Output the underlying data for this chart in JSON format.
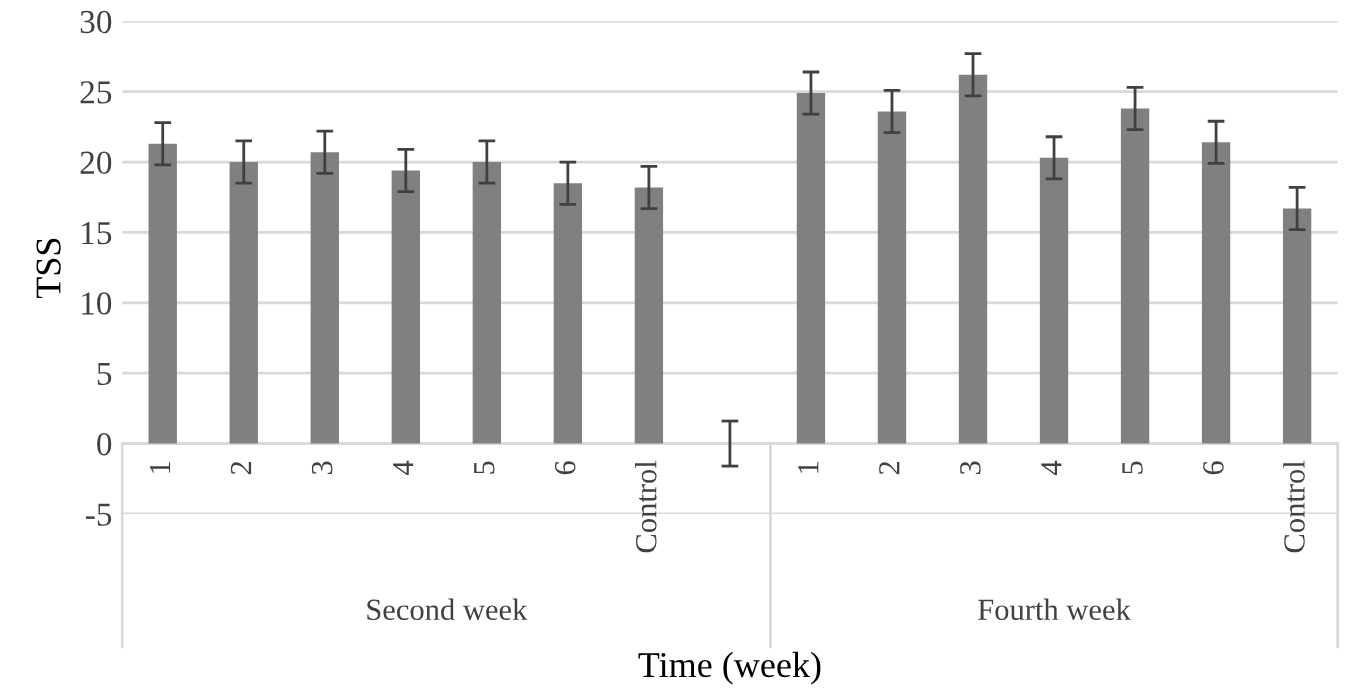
{
  "chart_data": {
    "type": "bar",
    "xlabel": "Time (week)",
    "ylabel": "TSS",
    "categories": [
      "1",
      "2",
      "3",
      "4",
      "5",
      "6",
      "Control",
      null,
      "1",
      "2",
      "3",
      "4",
      "5",
      "6",
      "Control"
    ],
    "series": [
      {
        "color": "#808080",
        "values": [
          21.3,
          20.0,
          20.7,
          19.4,
          20.0,
          18.5,
          18.2,
          0,
          24.9,
          23.6,
          26.2,
          20.3,
          23.8,
          21.4,
          16.7
        ],
        "errors": [
          1.5,
          1.5,
          1.5,
          1.5,
          1.5,
          1.5,
          1.5,
          1.6,
          1.5,
          1.5,
          1.5,
          1.5,
          1.5,
          1.5,
          1.5
        ]
      }
    ],
    "annotations": [
      "Second week",
      "Fourth week"
    ],
    "ylim": [
      -5,
      30
    ],
    "yticks": [
      -5,
      0,
      5,
      10,
      15,
      20,
      25,
      30
    ],
    "grid": "y",
    "legend": false
  }
}
